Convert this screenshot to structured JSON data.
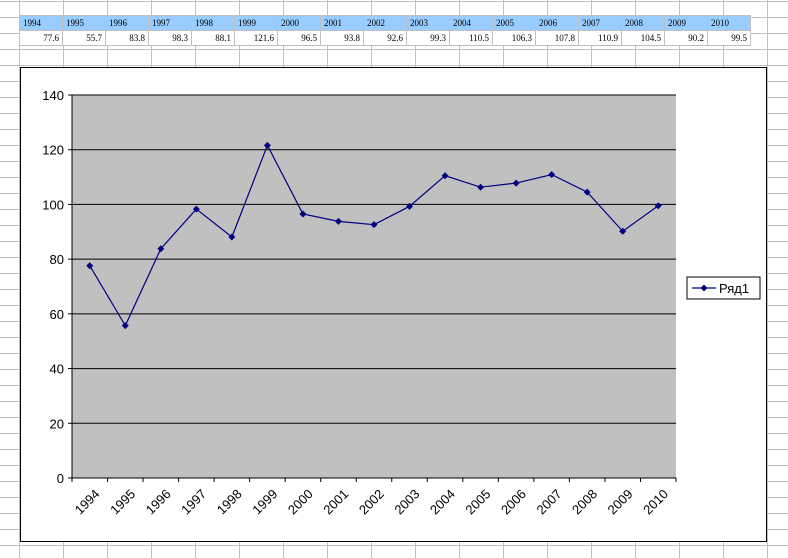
{
  "sheet": {
    "years": [
      "1994",
      "1995",
      "1996",
      "1997",
      "1998",
      "1999",
      "2000",
      "2001",
      "2002",
      "2003",
      "2004",
      "2005",
      "2006",
      "2007",
      "2008",
      "2009",
      "2010"
    ],
    "values": [
      "77.6",
      "55.7",
      "83.8",
      "98.3",
      "88.1",
      "121.6",
      "96.5",
      "93.8",
      "92.6",
      "99.3",
      "110.5",
      "106.3",
      "107.8",
      "110.9",
      "104.5",
      "90.2",
      "99.5"
    ]
  },
  "chart_data": {
    "type": "line",
    "categories": [
      "1994",
      "1995",
      "1996",
      "1997",
      "1998",
      "1999",
      "2000",
      "2001",
      "2002",
      "2003",
      "2004",
      "2005",
      "2006",
      "2007",
      "2008",
      "2009",
      "2010"
    ],
    "series": [
      {
        "name": "Ряд1",
        "values": [
          77.6,
          55.7,
          83.8,
          98.3,
          88.1,
          121.6,
          96.5,
          93.8,
          92.6,
          99.3,
          110.5,
          106.3,
          107.8,
          110.9,
          104.5,
          90.2,
          99.5
        ],
        "color": "#000080"
      }
    ],
    "y_ticks": [
      "0",
      "20",
      "40",
      "60",
      "80",
      "100",
      "120",
      "140"
    ],
    "ylim": [
      0,
      140
    ],
    "title": "",
    "xlabel": "",
    "ylabel": "",
    "grid": true,
    "plot_background": "#c0c0c0",
    "legend": "right"
  }
}
